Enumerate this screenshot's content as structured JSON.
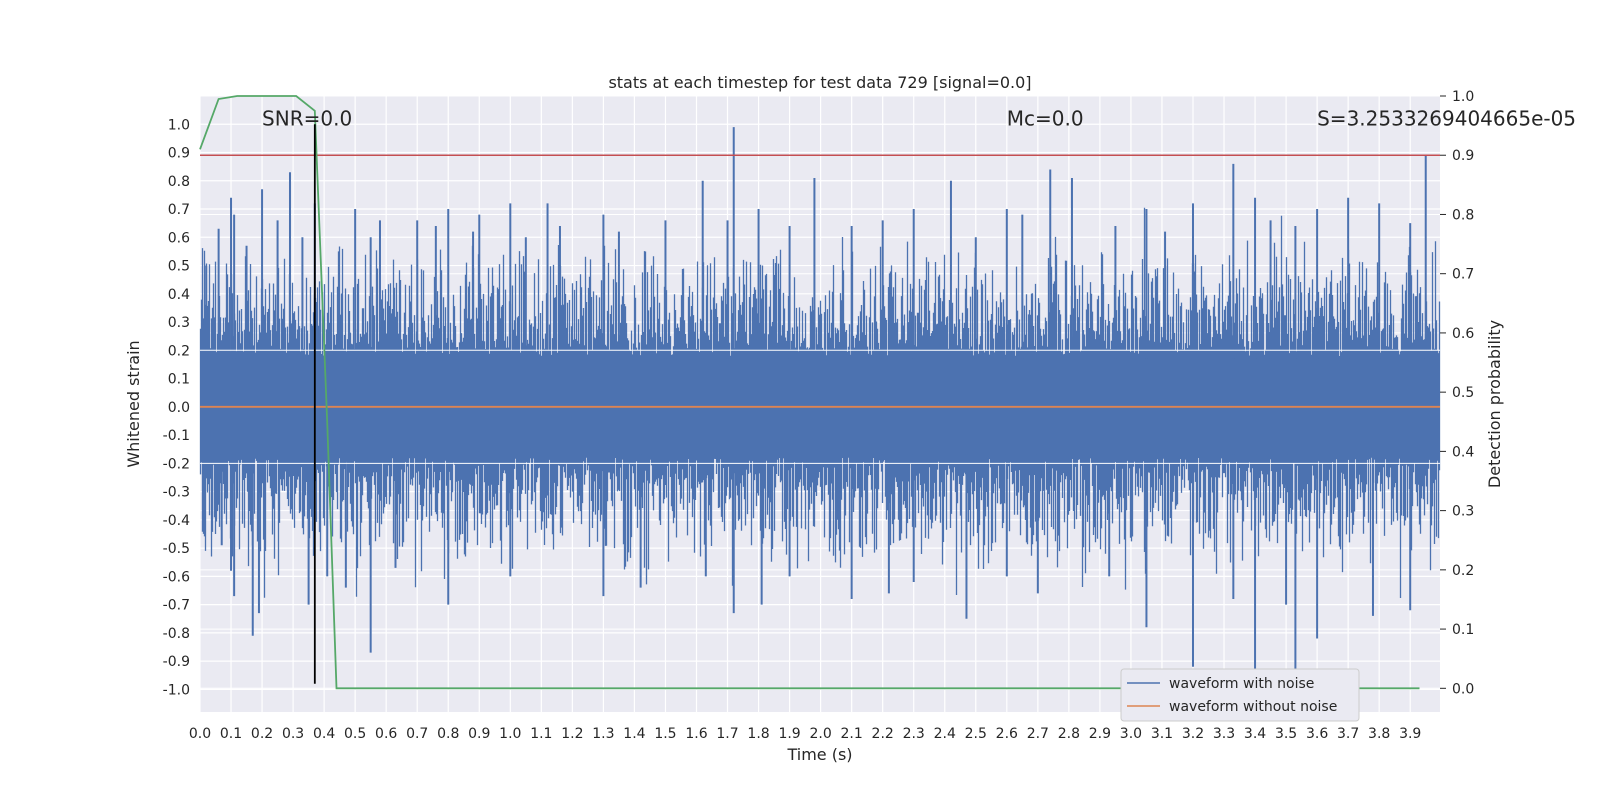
{
  "chart_data": {
    "type": "line",
    "title": "stats at each timestep for test data 729 [signal=0.0]",
    "xlabel": "Time (s)",
    "ylabel": "Whitened strain",
    "y2label": "Detection probability",
    "xlim": [
      0.0,
      3.996
    ],
    "ylim": [
      -1.08,
      1.1
    ],
    "y2lim": [
      -0.04,
      1.0
    ],
    "x_ticks": [
      "0.0",
      "0.1",
      "0.2",
      "0.3",
      "0.4",
      "0.5",
      "0.6",
      "0.7",
      "0.8",
      "0.9",
      "1.0",
      "1.1",
      "1.2",
      "1.3",
      "1.4",
      "1.5",
      "1.6",
      "1.7",
      "1.8",
      "1.9",
      "2.0",
      "2.1",
      "2.2",
      "2.3",
      "2.4",
      "2.5",
      "2.6",
      "2.7",
      "2.8",
      "2.9",
      "3.0",
      "3.1",
      "3.2",
      "3.3",
      "3.4",
      "3.5",
      "3.6",
      "3.7",
      "3.8",
      "3.9"
    ],
    "y_ticks": [
      "1.0",
      "0.9",
      "0.8",
      "0.7",
      "0.6",
      "0.5",
      "0.4",
      "0.3",
      "0.2",
      "0.1",
      "0.0",
      "-0.1",
      "-0.2",
      "-0.3",
      "-0.4",
      "-0.5",
      "-0.6",
      "-0.7",
      "-0.8",
      "-0.9",
      "-1.0"
    ],
    "y2_ticks": [
      "1.0",
      "0.9",
      "0.8",
      "0.7",
      "0.6",
      "0.5",
      "0.4",
      "0.3",
      "0.2",
      "0.1",
      "0.0"
    ],
    "grid": true,
    "legend_position": "lower-right",
    "series": [
      {
        "name": "waveform with noise",
        "axis": "left",
        "color": "#4c72b0",
        "peaks_x": [
          0.02,
          0.06,
          0.1,
          0.11,
          0.15,
          0.2,
          0.25,
          0.29,
          0.33,
          0.37,
          0.5,
          0.55,
          0.58,
          0.7,
          0.76,
          0.8,
          0.88,
          0.9,
          1.0,
          1.05,
          1.12,
          1.16,
          1.3,
          1.35,
          1.5,
          1.62,
          1.7,
          1.72,
          1.8,
          1.9,
          1.98,
          2.1,
          2.2,
          2.3,
          2.42,
          2.5,
          2.6,
          2.65,
          2.74,
          2.81,
          2.95,
          3.05,
          3.11,
          3.2,
          3.33,
          3.4,
          3.45,
          3.53,
          3.6,
          3.7,
          3.8,
          3.9,
          3.95
        ],
        "peaks_y": [
          0.5,
          0.63,
          0.74,
          0.68,
          0.57,
          0.77,
          0.66,
          0.83,
          0.6,
          0.72,
          0.7,
          0.6,
          0.66,
          0.66,
          0.64,
          0.7,
          0.62,
          0.68,
          0.72,
          0.6,
          0.72,
          0.64,
          0.68,
          0.62,
          0.66,
          0.8,
          0.66,
          0.99,
          0.7,
          0.64,
          0.81,
          0.64,
          0.66,
          0.7,
          0.8,
          0.6,
          0.7,
          0.68,
          0.84,
          0.81,
          0.64,
          0.7,
          0.62,
          0.72,
          0.86,
          0.74,
          0.66,
          0.64,
          0.7,
          0.74,
          0.72,
          0.65,
          0.89
        ],
        "troughs_x": [
          0.07,
          0.1,
          0.11,
          0.17,
          0.19,
          0.35,
          0.41,
          0.47,
          0.55,
          0.63,
          0.8,
          1.0,
          1.3,
          1.42,
          1.63,
          1.72,
          1.81,
          1.9,
          2.1,
          2.22,
          2.3,
          2.47,
          2.6,
          2.7,
          2.93,
          3.05,
          3.2,
          3.33,
          3.4,
          3.5,
          3.53,
          3.6,
          3.78,
          3.9
        ],
        "troughs_y": [
          -0.49,
          -0.58,
          -0.67,
          -0.81,
          -0.73,
          -0.7,
          -0.6,
          -0.64,
          -0.87,
          -0.57,
          -0.7,
          -0.6,
          -0.67,
          -0.64,
          -0.6,
          -0.73,
          -0.7,
          -0.6,
          -0.68,
          -0.66,
          -0.62,
          -0.75,
          -0.6,
          -0.66,
          -0.6,
          -0.78,
          -0.92,
          -0.68,
          -0.94,
          -0.7,
          -0.96,
          -0.82,
          -0.74,
          -0.72
        ]
      },
      {
        "name": "waveform without noise",
        "axis": "left",
        "color": "#dd8452",
        "x": [
          0.0,
          3.996
        ],
        "y": [
          0.0,
          0.0
        ]
      },
      {
        "axis": "right",
        "color": "#55a868",
        "x": [
          0.0,
          0.06,
          0.12,
          0.18,
          0.24,
          0.31,
          0.37,
          0.41,
          0.44,
          0.5,
          1.0,
          2.0,
          3.0,
          3.93
        ],
        "y": [
          0.91,
          0.995,
          1.0,
          1.0,
          1.0,
          1.0,
          0.975,
          0.45,
          0.0,
          0.0,
          0.0,
          0.0,
          0.0,
          0.0
        ]
      }
    ],
    "hlines": [
      {
        "axis": "right",
        "y": 0.9,
        "color": "#c44e52"
      }
    ],
    "vlines": [
      {
        "x": 0.37,
        "y_from": -0.98,
        "y_to": 1.0,
        "color": "#000000"
      }
    ],
    "annotations": [
      {
        "text": "SNR=0.0",
        "x": 0.2,
        "y": 1.0
      },
      {
        "text": "Mc=0.0",
        "x": 2.6,
        "y": 1.0
      },
      {
        "text": "S=3.2533269404665e-05",
        "x": 3.6,
        "y": 1.0
      }
    ]
  }
}
